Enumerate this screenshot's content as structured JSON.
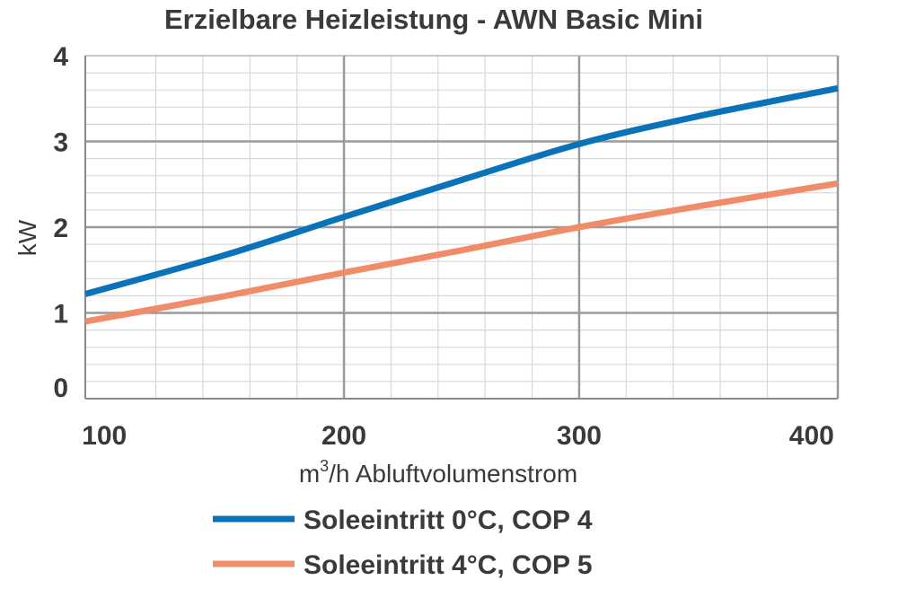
{
  "chart_data": {
    "type": "line",
    "title": "Erzielbare Heizleistung - AWN Basic Mini",
    "xlabel_prefix": "m",
    "xlabel_sup": "3",
    "xlabel_rest": "/h Abluftvolumenstrom",
    "ylabel": "kW",
    "xlim": [
      90,
      410
    ],
    "ylim": [
      0,
      4
    ],
    "x_ticks": [
      "100",
      "200",
      "300",
      "400"
    ],
    "y_ticks": [
      "0",
      "1",
      "2",
      "3",
      "4"
    ],
    "grid": true,
    "legend_position": "bottom",
    "series": [
      {
        "name": "Soleeintritt 0°C, COP 4",
        "color": "#0a72b9",
        "points": [
          [
            90,
            1.22
          ],
          [
            150,
            1.68
          ],
          [
            200,
            2.12
          ],
          [
            250,
            2.55
          ],
          [
            300,
            2.97
          ],
          [
            350,
            3.29
          ],
          [
            410,
            3.62
          ]
        ]
      },
      {
        "name": "Soleeintritt 4°C, COP 5",
        "color": "#f08c68",
        "points": [
          [
            90,
            0.9
          ],
          [
            150,
            1.2
          ],
          [
            200,
            1.47
          ],
          [
            250,
            1.73
          ],
          [
            300,
            2.0
          ],
          [
            350,
            2.24
          ],
          [
            410,
            2.51
          ]
        ]
      }
    ]
  }
}
